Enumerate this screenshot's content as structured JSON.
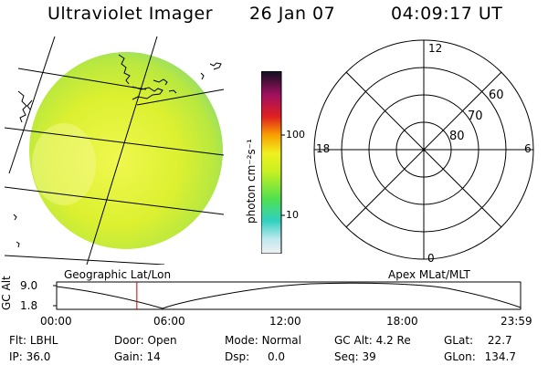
{
  "header": {
    "title": "Ultraviolet Imager",
    "date": "26 Jan 07",
    "time": "04:09:17 UT"
  },
  "colorbar": {
    "unit_label": "photon cm⁻²s⁻¹",
    "ticks": [
      "100",
      "10"
    ]
  },
  "polar": {
    "lat_labels": [
      "60",
      "70",
      "80"
    ],
    "mlt_labels": {
      "top": "12",
      "left": "18",
      "right": "6",
      "bottom": "0"
    }
  },
  "panels": {
    "left_label": "Geographic Lat/Lon",
    "right_label": "Apex MLat/MLT"
  },
  "altitude_plot": {
    "ylabel": "GC Alt",
    "y_ticks": [
      "9.0",
      "1.8"
    ],
    "x_ticks": [
      "00:00",
      "06:00",
      "12:00",
      "18:00",
      "23:59"
    ],
    "marker_time_hours": 4.15
  },
  "status": {
    "flt": {
      "label": "Flt:",
      "value": "LBHL"
    },
    "door": {
      "label": "Door:",
      "value": "Open"
    },
    "mode": {
      "label": "Mode:",
      "value": "Normal"
    },
    "gcalt": {
      "label": "GC Alt:",
      "value": "4.2 Re"
    },
    "glat": {
      "label": "GLat:",
      "value": "22.7"
    },
    "ip": {
      "label": "IP:",
      "value": "36.0"
    },
    "gain": {
      "label": "Gain:",
      "value": "14"
    },
    "dsp": {
      "label": "Dsp:",
      "value": "0.0"
    },
    "seq": {
      "label": "Seq:",
      "value": "39"
    },
    "glon": {
      "label": "GLon:",
      "value": "134.7"
    }
  },
  "colors": {
    "marker": "#cc0000",
    "globe_fill": "#d8f020",
    "globe_edge": "#a0e060"
  }
}
